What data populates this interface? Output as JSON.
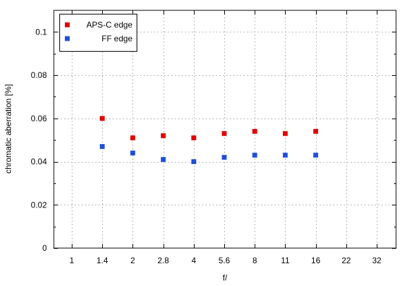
{
  "chart_data": {
    "type": "scatter",
    "categories": [
      "1",
      "1.4",
      "2",
      "2.8",
      "4",
      "5.6",
      "8",
      "11",
      "16",
      "22",
      "32"
    ],
    "xlabel": "f/",
    "ylabel": "chromatic aberration [%]",
    "ylim": [
      0,
      0.11
    ],
    "yticks": [
      0,
      0.02,
      0.04,
      0.06,
      0.08,
      0.1
    ],
    "ytick_labels": [
      "0",
      "0.02",
      "0.04",
      "0.06",
      "0.08",
      "0.1"
    ],
    "grid": true,
    "legend_position": "top-left",
    "series": [
      {
        "name": "APS-C edge",
        "color": "#e00000",
        "x": [
          "1.4",
          "2",
          "2.8",
          "4",
          "5.6",
          "8",
          "11",
          "16"
        ],
        "values": [
          0.06,
          0.051,
          0.052,
          0.051,
          0.053,
          0.054,
          0.053,
          0.054
        ]
      },
      {
        "name": "FF edge",
        "color": "#1f4fd8",
        "x": [
          "1.4",
          "2",
          "2.8",
          "4",
          "5.6",
          "8",
          "11",
          "16"
        ],
        "values": [
          0.047,
          0.044,
          0.041,
          0.04,
          0.042,
          0.043,
          0.043,
          0.043
        ]
      }
    ]
  }
}
